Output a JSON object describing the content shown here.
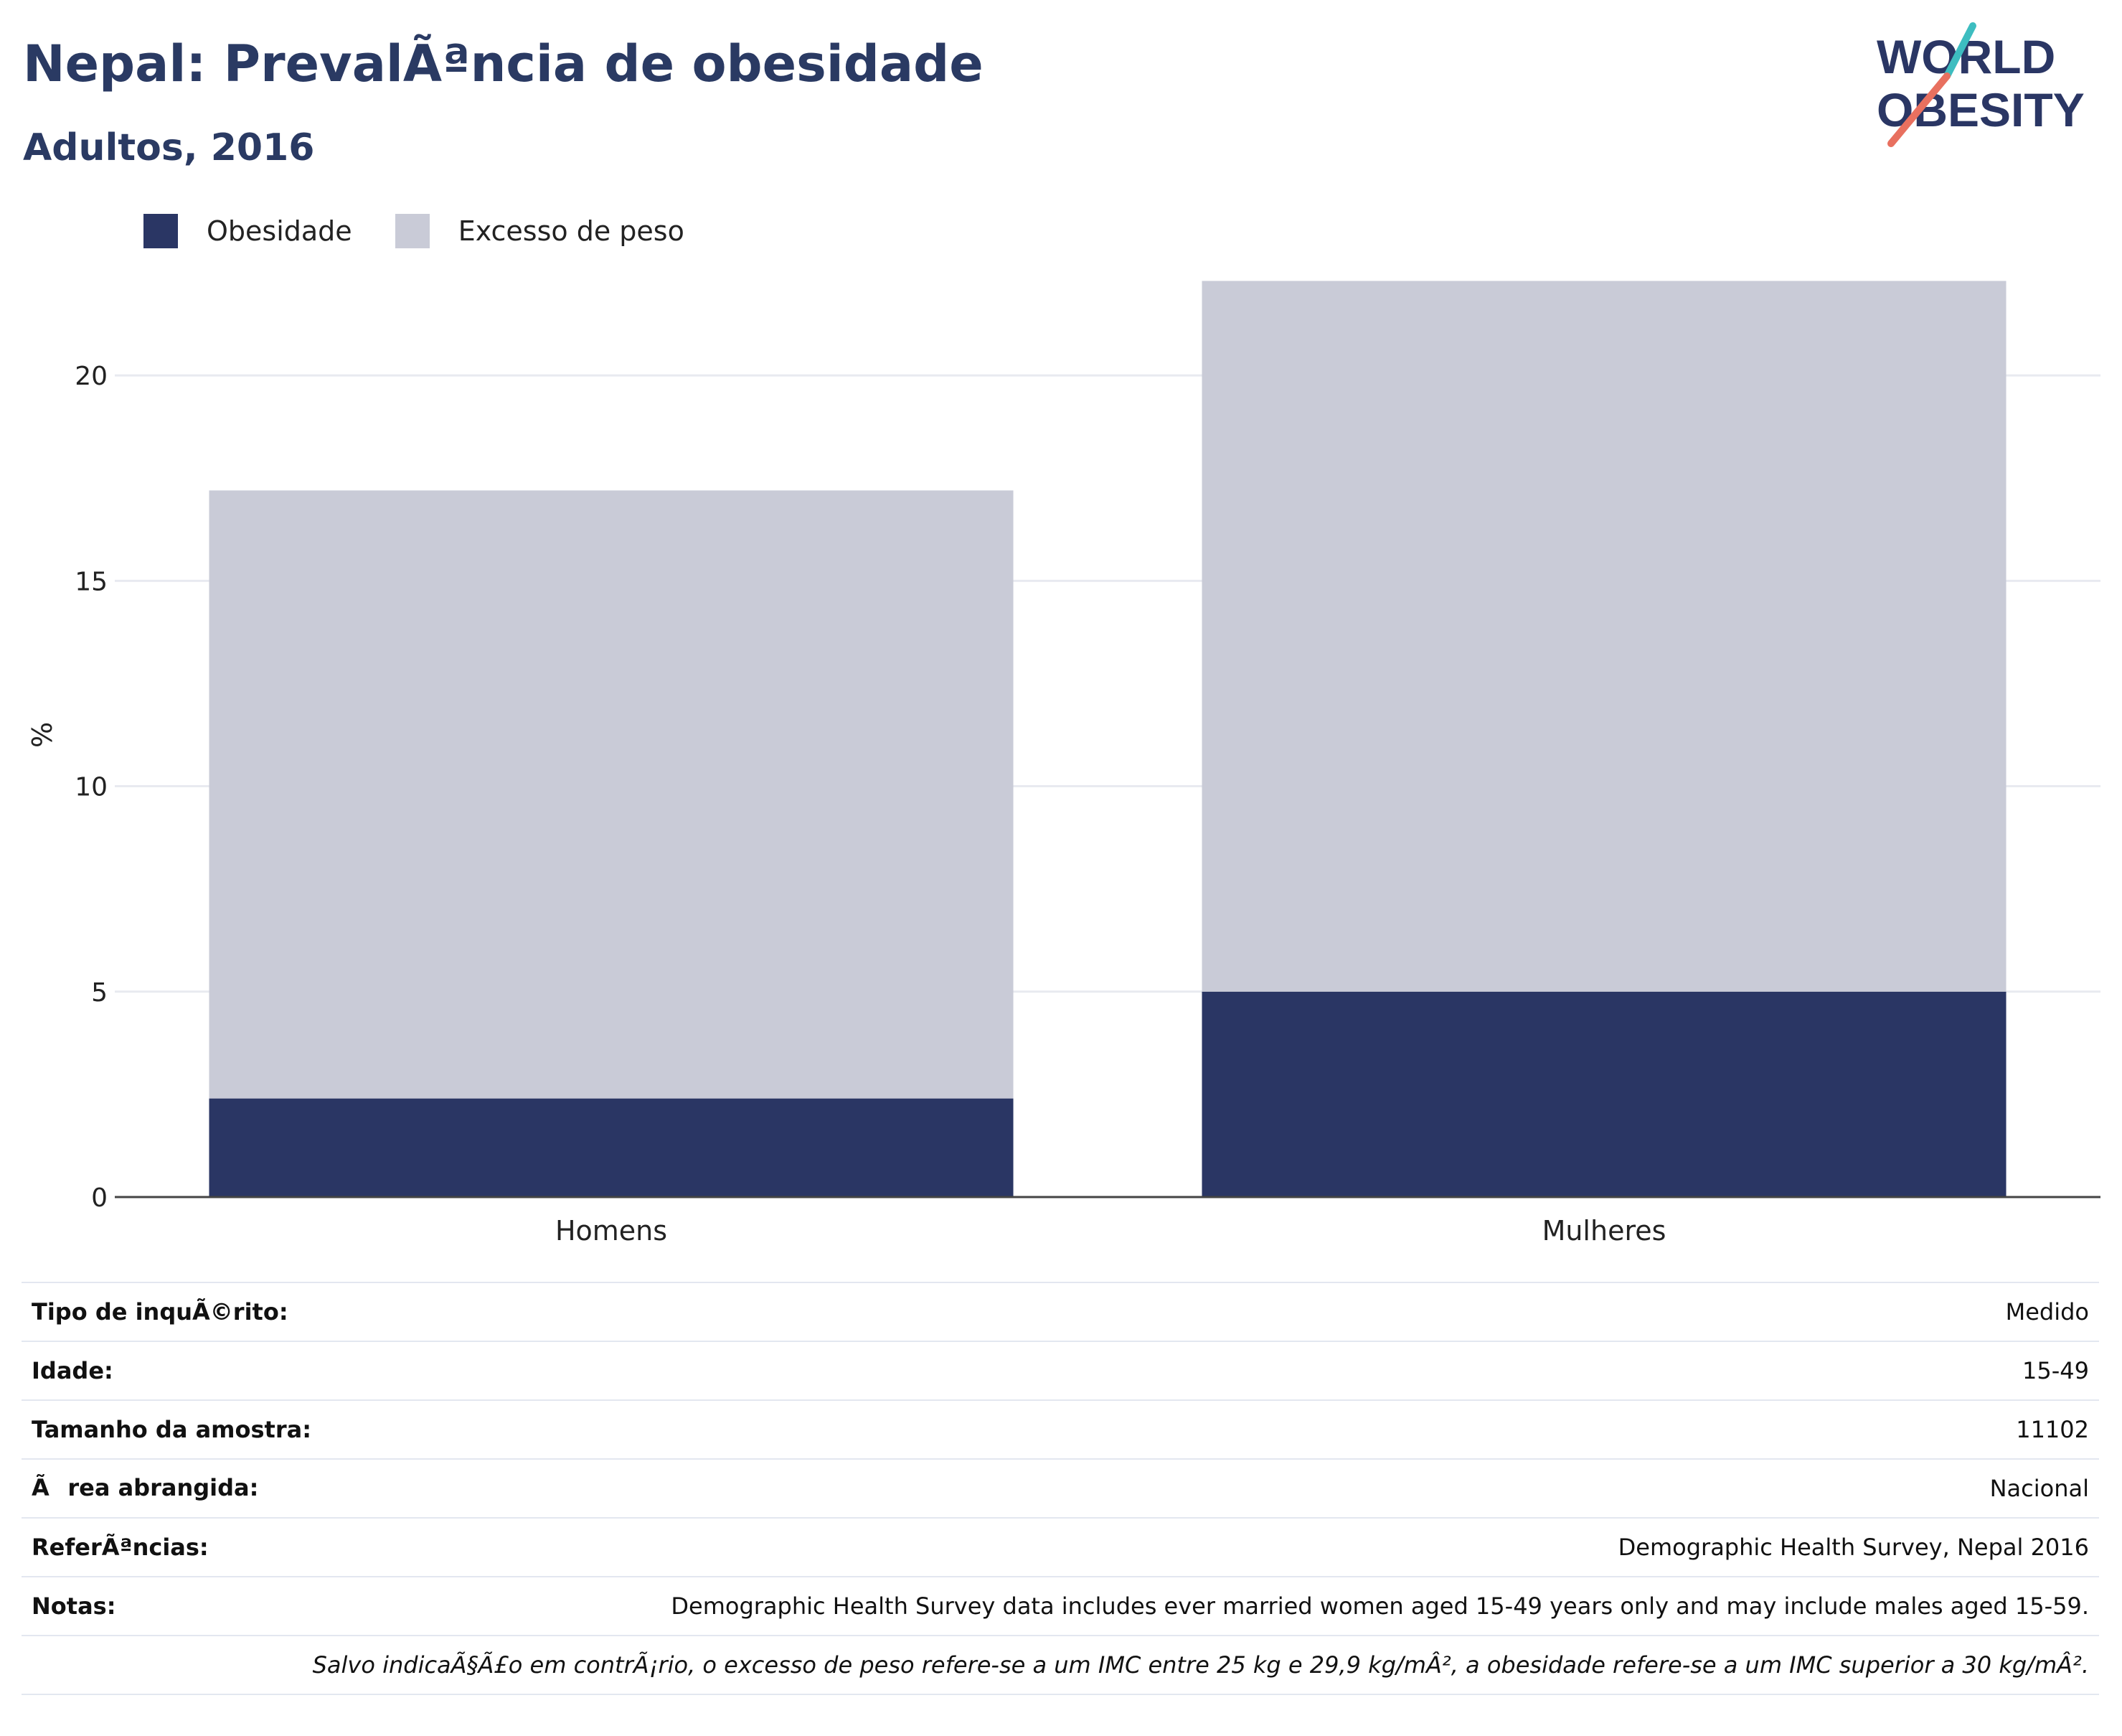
{
  "header": {
    "title": "Nepal: PrevalÃªncia de obesidade",
    "subtitle": "Adultos, 2016",
    "logo_line1": "WORLD",
    "logo_line2": "OBESITY"
  },
  "legend": {
    "items": [
      {
        "label": "Obesidade",
        "color": "#2a3664"
      },
      {
        "label": "Excesso de peso",
        "color": "#c9cbd7"
      }
    ]
  },
  "chart_data": {
    "type": "bar",
    "stacked": true,
    "categories": [
      "Homens",
      "Mulheres"
    ],
    "series": [
      {
        "name": "Obesidade",
        "color": "#2a3664",
        "values": [
          2.4,
          5.0
        ]
      },
      {
        "name": "Excesso de peso",
        "color": "#c9cbd7",
        "values": [
          14.8,
          17.3
        ]
      }
    ],
    "ylabel": "%",
    "ylim": [
      0,
      22.5
    ],
    "yticks": [
      0,
      5,
      10,
      15,
      20
    ],
    "grid": true,
    "legend_position": "top-left"
  },
  "meta": {
    "rows": [
      {
        "label": "Tipo de inquÃ©rito:",
        "value": "Medido"
      },
      {
        "label": "Idade:",
        "value": "15-49"
      },
      {
        "label": "Tamanho da amostra:",
        "value": "11102"
      },
      {
        "label": "Ãrea abrangida:",
        "value": "Nacional"
      },
      {
        "label": "ReferÃªncias:",
        "value": "Demographic Health Survey, Nepal 2016"
      },
      {
        "label": "Notas:",
        "value": "Demographic Health Survey data includes ever married women aged 15-49 years only and may include males aged 15-59."
      }
    ],
    "note2": "Salvo indicaÃ§Ã£o em contrÃ¡rio, o excesso de peso refere-se a um IMC entre 25 kg e 29,9 kg/mÂ², a obesidade refere-se a um IMC superior a 30 kg/mÂ²."
  }
}
